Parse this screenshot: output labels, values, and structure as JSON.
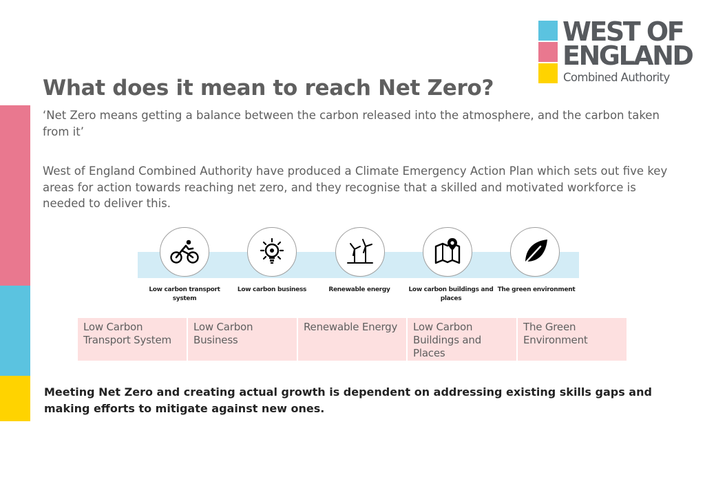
{
  "colors": {
    "pink": "#e9788f",
    "blue": "#5bc3e0",
    "yellow": "#ffd300",
    "grey_text": "#5f5f5f",
    "logo_grey": "#575a5e",
    "band": "#d3ecf6",
    "cell_bg": "#fde0e0"
  },
  "logo": {
    "line1": "WEST OF",
    "line2": "ENGLAND",
    "line3": "Combined Authority"
  },
  "title": "What does it mean to reach Net Zero?",
  "quote": "‘Net Zero means getting a balance between the carbon released into the atmosphere, and the carbon taken from it’",
  "intro": "West of England Combined Authority have produced a Climate Emergency Action Plan which sets out five key areas for action towards reaching net zero, and they recognise that a skilled and motivated workforce is needed to deliver this.",
  "icons": [
    {
      "icon": "bicycle-icon",
      "label": "Low carbon transport system"
    },
    {
      "icon": "lightbulb-icon",
      "label": "Low carbon business"
    },
    {
      "icon": "wind-turbine-icon",
      "label": "Renewable energy"
    },
    {
      "icon": "map-icon",
      "label": "Low carbon buildings and places"
    },
    {
      "icon": "leaf-icon",
      "label": "The green environment"
    }
  ],
  "areas": [
    "Low Carbon Transport System",
    "Low Carbon Business",
    "Renewable Energy",
    "Low Carbon Buildings and Places",
    "The Green Environment"
  ],
  "bottom_text": "Meeting Net Zero and creating actual growth is dependent on addressing existing skills gaps and making efforts to mitigate against new ones."
}
